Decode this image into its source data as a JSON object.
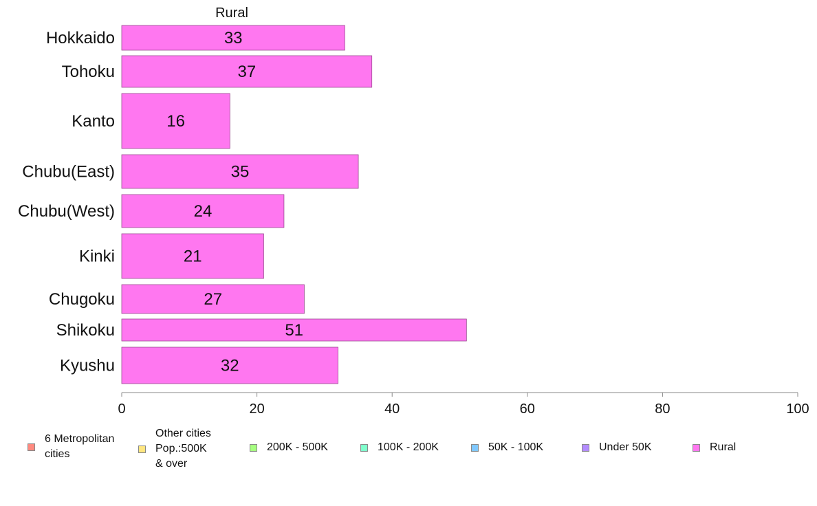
{
  "chart_data": {
    "type": "bar",
    "orientation": "horizontal",
    "title": "Rural",
    "categories": [
      "Hokkaido",
      "Tohoku",
      "Kanto",
      "Chubu(East)",
      "Chubu(West)",
      "Kinki",
      "Chugoku",
      "Shikoku",
      "Kyushu"
    ],
    "series": [
      {
        "name": "Rural",
        "values": [
          33,
          37,
          16,
          35,
          24,
          21,
          27,
          51,
          32
        ],
        "color": "#ff77f0"
      }
    ],
    "xlim": [
      0,
      100
    ],
    "xticks": [
      0,
      20,
      40,
      60,
      80,
      100
    ],
    "grid": false,
    "legend_placement": "bottom"
  },
  "legend": [
    {
      "label": "6 Metropolitan\n cities",
      "color": "#ff8a80"
    },
    {
      "label": "Other cities\nPop.:500K\n & over",
      "color": "#ffe680"
    },
    {
      "label": "200K - 500K",
      "color": "#a6ff80"
    },
    {
      "label": "100K - 200K",
      "color": "#80ffcc"
    },
    {
      "label": "50K - 100K",
      "color": "#80c8ff"
    },
    {
      "label": "Under 50K",
      "color": "#b38cff"
    },
    {
      "label": "Rural",
      "color": "#ff77f0"
    }
  ]
}
